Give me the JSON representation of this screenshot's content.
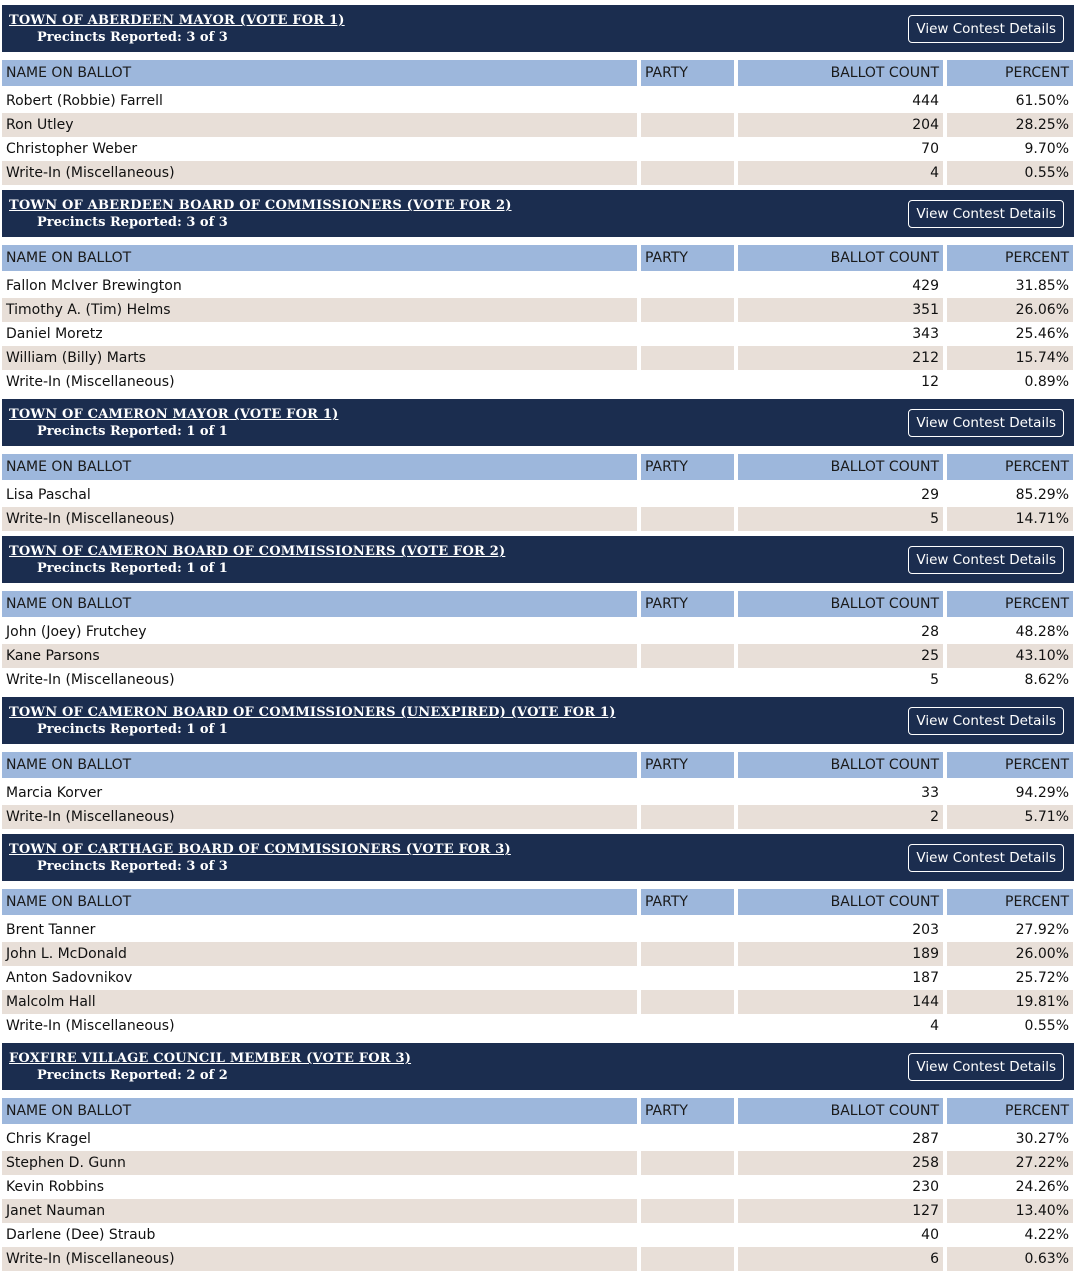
{
  "columns": [
    "NAME ON BALLOT",
    "PARTY",
    "BALLOT COUNT",
    "PERCENT"
  ],
  "button_label": "View Contest Details",
  "contests": [
    {
      "title": "TOWN OF ABERDEEN MAYOR (VOTE FOR 1)",
      "precincts": "Precincts Reported: 3 of 3",
      "rows": [
        [
          "Robert (Robbie) Farrell",
          444,
          "61.50%"
        ],
        [
          "Ron Utley",
          204,
          "28.25%"
        ],
        [
          "Christopher Weber",
          70,
          "9.70%"
        ],
        [
          "Write-In (Miscellaneous)",
          4,
          "0.55%"
        ]
      ]
    },
    {
      "title": "TOWN OF ABERDEEN BOARD OF COMMISSIONERS (VOTE FOR 2)",
      "precincts": "Precincts Reported: 3 of 3",
      "rows": [
        [
          "Fallon McIver Brewington",
          429,
          "31.85%"
        ],
        [
          "Timothy A. (Tim) Helms",
          351,
          "26.06%"
        ],
        [
          "Daniel Moretz",
          343,
          "25.46%"
        ],
        [
          "William (Billy) Marts",
          212,
          "15.74%"
        ],
        [
          "Write-In (Miscellaneous)",
          12,
          "0.89%"
        ]
      ]
    },
    {
      "title": "TOWN OF CAMERON MAYOR (VOTE FOR 1)",
      "precincts": "Precincts Reported: 1 of 1",
      "rows": [
        [
          "Lisa Paschal",
          29,
          "85.29%"
        ],
        [
          "Write-In (Miscellaneous)",
          5,
          "14.71%"
        ]
      ]
    },
    {
      "title": "TOWN OF CAMERON BOARD OF COMMISSIONERS (VOTE FOR 2)",
      "precincts": "Precincts Reported: 1 of 1",
      "rows": [
        [
          "John (Joey) Frutchey",
          28,
          "48.28%"
        ],
        [
          "Kane Parsons",
          25,
          "43.10%"
        ],
        [
          "Write-In (Miscellaneous)",
          5,
          "8.62%"
        ]
      ]
    },
    {
      "title": "TOWN OF CAMERON BOARD OF COMMISSIONERS (UNEXPIRED) (VOTE FOR 1)",
      "precincts": "Precincts Reported: 1 of 1",
      "rows": [
        [
          "Marcia Korver",
          33,
          "94.29%"
        ],
        [
          "Write-In (Miscellaneous)",
          2,
          "5.71%"
        ]
      ]
    },
    {
      "title": "TOWN OF CARTHAGE BOARD OF COMMISSIONERS (VOTE FOR 3)",
      "precincts": "Precincts Reported: 3 of 3",
      "rows": [
        [
          "Brent Tanner",
          203,
          "27.92%"
        ],
        [
          "John L. McDonald",
          189,
          "26.00%"
        ],
        [
          "Anton Sadovnikov",
          187,
          "25.72%"
        ],
        [
          "Malcolm Hall",
          144,
          "19.81%"
        ],
        [
          "Write-In (Miscellaneous)",
          4,
          "0.55%"
        ]
      ]
    },
    {
      "title": "FOXFIRE VILLAGE COUNCIL MEMBER (VOTE FOR 3)",
      "precincts": "Precincts Reported: 2 of 2",
      "rows": [
        [
          "Chris Kragel",
          287,
          "30.27%"
        ],
        [
          "Stephen D. Gunn",
          258,
          "27.22%"
        ],
        [
          "Kevin Robbins",
          230,
          "24.26%"
        ],
        [
          "Janet Nauman",
          127,
          "13.40%"
        ],
        [
          "Darlene (Dee) Straub",
          40,
          "4.22%"
        ],
        [
          "Write-In (Miscellaneous)",
          6,
          "0.63%"
        ]
      ]
    }
  ]
}
